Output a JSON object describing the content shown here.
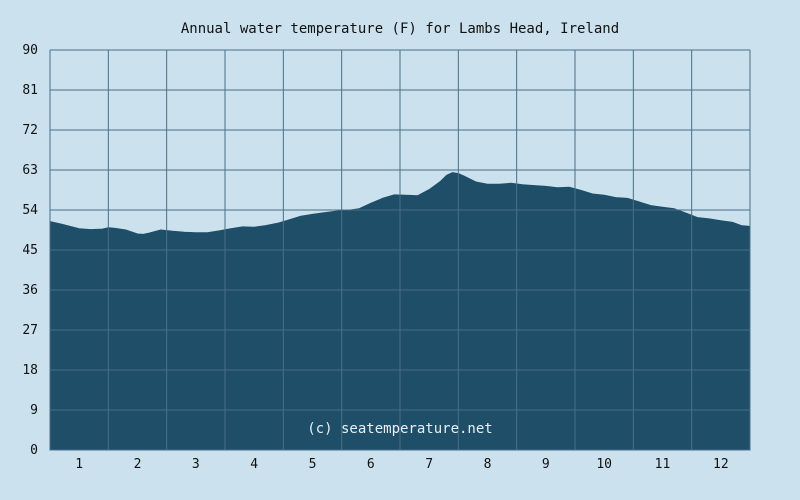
{
  "chart_data": {
    "type": "area",
    "title": "Annual water temperature (F) for Lambs Head, Ireland",
    "watermark": "(c) seatemperature.net",
    "xlabel": "",
    "ylabel": "",
    "x_ticks": [
      "1",
      "2",
      "3",
      "4",
      "5",
      "6",
      "7",
      "8",
      "9",
      "10",
      "11",
      "12"
    ],
    "y_ticks": [
      "0",
      "9",
      "18",
      "27",
      "36",
      "45",
      "54",
      "63",
      "72",
      "81",
      "90"
    ],
    "xlim": [
      0.5,
      12.5
    ],
    "ylim": [
      0,
      90
    ],
    "grid": true,
    "series": [
      {
        "x": [
          0.5,
          0.7,
          1.0,
          1.2,
          1.4,
          1.5,
          1.6,
          1.8,
          2.0,
          2.1,
          2.2,
          2.4,
          2.6,
          2.8,
          3.0,
          3.2,
          3.4,
          3.6,
          3.8,
          4.0,
          4.2,
          4.4,
          4.6,
          4.8,
          5.0,
          5.2,
          5.4,
          5.6,
          5.8,
          6.0,
          6.2,
          6.4,
          6.6,
          6.8,
          7.0,
          7.2,
          7.3,
          7.4,
          7.5,
          7.6,
          7.8,
          8.0,
          8.2,
          8.4,
          8.6,
          8.8,
          9.0,
          9.2,
          9.4,
          9.6,
          9.8,
          10.0,
          10.2,
          10.4,
          10.6,
          10.8,
          11.0,
          11.2,
          11.4,
          11.6,
          11.8,
          12.0,
          12.2,
          12.35,
          12.5
        ],
        "y": [
          51.4,
          50.8,
          49.8,
          49.6,
          49.7,
          50.0,
          49.9,
          49.5,
          48.6,
          48.5,
          48.8,
          49.5,
          49.2,
          49.0,
          48.9,
          48.9,
          49.3,
          49.8,
          50.2,
          50.1,
          50.5,
          51.0,
          51.8,
          52.6,
          53.0,
          53.4,
          53.7,
          53.9,
          54.3,
          55.5,
          56.6,
          57.4,
          57.3,
          57.2,
          58.6,
          60.5,
          61.8,
          62.4,
          62.2,
          61.6,
          60.3,
          59.8,
          59.8,
          60.0,
          59.7,
          59.5,
          59.3,
          59.0,
          59.1,
          58.4,
          57.6,
          57.3,
          56.8,
          56.6,
          55.8,
          55.0,
          54.6,
          54.3,
          53.3,
          52.3,
          52.0,
          51.6,
          51.2,
          50.5,
          50.3
        ]
      }
    ],
    "colors": {
      "background": "#cbe2ee",
      "area_fill": "#1f4e68",
      "grid": "#4a6f86",
      "text": "#111111",
      "watermark": "#e8f0f5"
    }
  }
}
